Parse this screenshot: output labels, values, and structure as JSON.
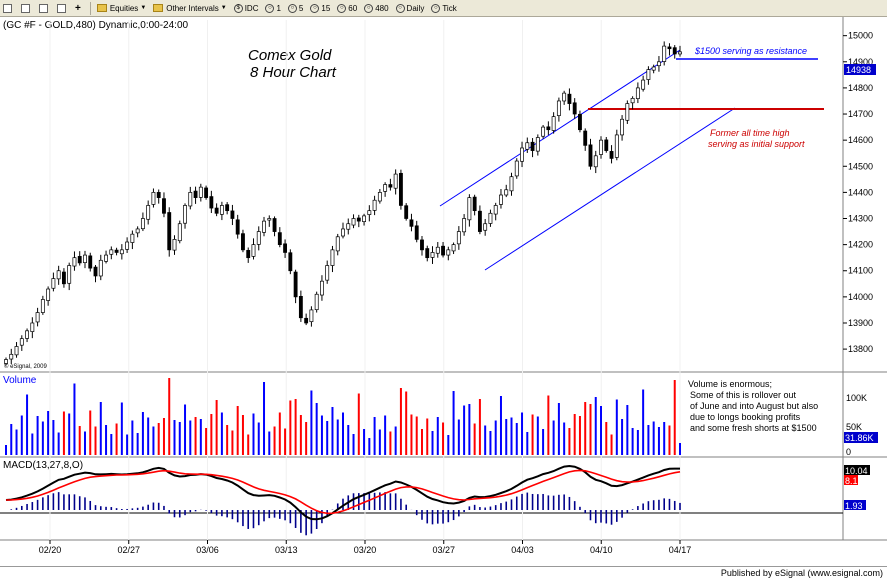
{
  "toolbar": {
    "items": [
      {
        "name": "layout-button",
        "label": ""
      },
      {
        "name": "window-button",
        "label": ""
      },
      {
        "name": "grid-button",
        "label": ""
      },
      {
        "name": "page-button",
        "label": ""
      },
      {
        "name": "add-button",
        "label": ""
      },
      {
        "name": "equities-button",
        "label": "Equities"
      },
      {
        "name": "intervals-button",
        "label": "Other Intervals"
      },
      {
        "name": "interval-idc",
        "label": "IDC"
      },
      {
        "name": "interval-1",
        "label": "1"
      },
      {
        "name": "interval-5",
        "label": "5"
      },
      {
        "name": "interval-15",
        "label": "15"
      },
      {
        "name": "interval-60",
        "label": "60"
      },
      {
        "name": "interval-480",
        "label": "480"
      },
      {
        "name": "interval-daily",
        "label": "Daily"
      },
      {
        "name": "interval-tick",
        "label": "Tick"
      }
    ]
  },
  "chart_header": "(GC #F - GOLD,480) Dynamic,0:00-24:00",
  "watermark": "© eSignal, 2009",
  "footer": "Published by eSignal (www.esignal.com)",
  "colors": {
    "up": "#ffffff",
    "down": "#000000",
    "volume_up": "#0000ff",
    "volume_down": "#ff0000",
    "macd": "#000000",
    "signal": "#ff0000",
    "channel": "#0000ff",
    "support": "#cc0000",
    "last_price_bg": "#0000cc"
  },
  "chart_data": [
    {
      "type": "candlestick",
      "title": "Comex Gold",
      "subtitle": "8 Hour Chart",
      "x_ticks": [
        "02/20",
        "02/27",
        "03/06",
        "03/13",
        "03/20",
        "03/27",
        "04/03",
        "04/10",
        "04/17"
      ],
      "y_ticks": [
        "15000",
        "14900",
        "14800",
        "14700",
        "14600",
        "14500",
        "14400",
        "14300",
        "14200",
        "14100",
        "14000",
        "13900",
        "13800"
      ],
      "ylim": [
        13720,
        15060
      ],
      "last_price": "14938",
      "close": [
        13760,
        13780,
        13810,
        13840,
        13870,
        13900,
        13940,
        13990,
        14030,
        14070,
        14100,
        14050,
        14120,
        14150,
        14130,
        14160,
        14110,
        14080,
        14140,
        14160,
        14180,
        14170,
        14180,
        14210,
        14240,
        14260,
        14300,
        14350,
        14400,
        14380,
        14320,
        14180,
        14220,
        14280,
        14350,
        14400,
        14380,
        14420,
        14380,
        14340,
        14320,
        14350,
        14330,
        14300,
        14240,
        14180,
        14150,
        14200,
        14250,
        14290,
        14300,
        14250,
        14200,
        14170,
        14100,
        14000,
        13920,
        13900,
        13950,
        14010,
        14060,
        14120,
        14180,
        14230,
        14260,
        14280,
        14300,
        14290,
        14310,
        14330,
        14370,
        14400,
        14430,
        14420,
        14470,
        14350,
        14300,
        14270,
        14220,
        14180,
        14150,
        14170,
        14190,
        14160,
        14180,
        14200,
        14250,
        14300,
        14380,
        14330,
        14250,
        14280,
        14320,
        14350,
        14390,
        14410,
        14460,
        14520,
        14570,
        14590,
        14560,
        14610,
        14650,
        14640,
        14690,
        14750,
        14780,
        14740,
        14700,
        14640,
        14580,
        14500,
        14540,
        14600,
        14560,
        14530,
        14620,
        14680,
        14740,
        14760,
        14800,
        14830,
        14870,
        14880,
        14900,
        14960,
        14950,
        14930,
        14938
      ],
      "annotations": [
        "$1500 serving as resistance",
        "Former all time high serving as initial support"
      ]
    },
    {
      "type": "bar",
      "title": "Volume",
      "y_ticks": [
        "100K",
        "50K",
        "0"
      ],
      "last_value": "31.86K",
      "annotation": [
        "Volume is enormous;",
        "Some of this is rollover out",
        "of June and into August but also",
        "due to longs booking profits",
        "and some fresh shorts at $1500"
      ]
    },
    {
      "type": "line",
      "title": "MACD(13,27,8,O)",
      "series": [
        {
          "name": "MACD"
        },
        {
          "name": "Signal"
        },
        {
          "name": "Histogram"
        }
      ],
      "y_ticks": [
        "10.04",
        "8.1",
        "1.93"
      ],
      "last_values": {
        "macd": "10.04",
        "signal": "8.1",
        "histogram": "1.93"
      }
    }
  ]
}
